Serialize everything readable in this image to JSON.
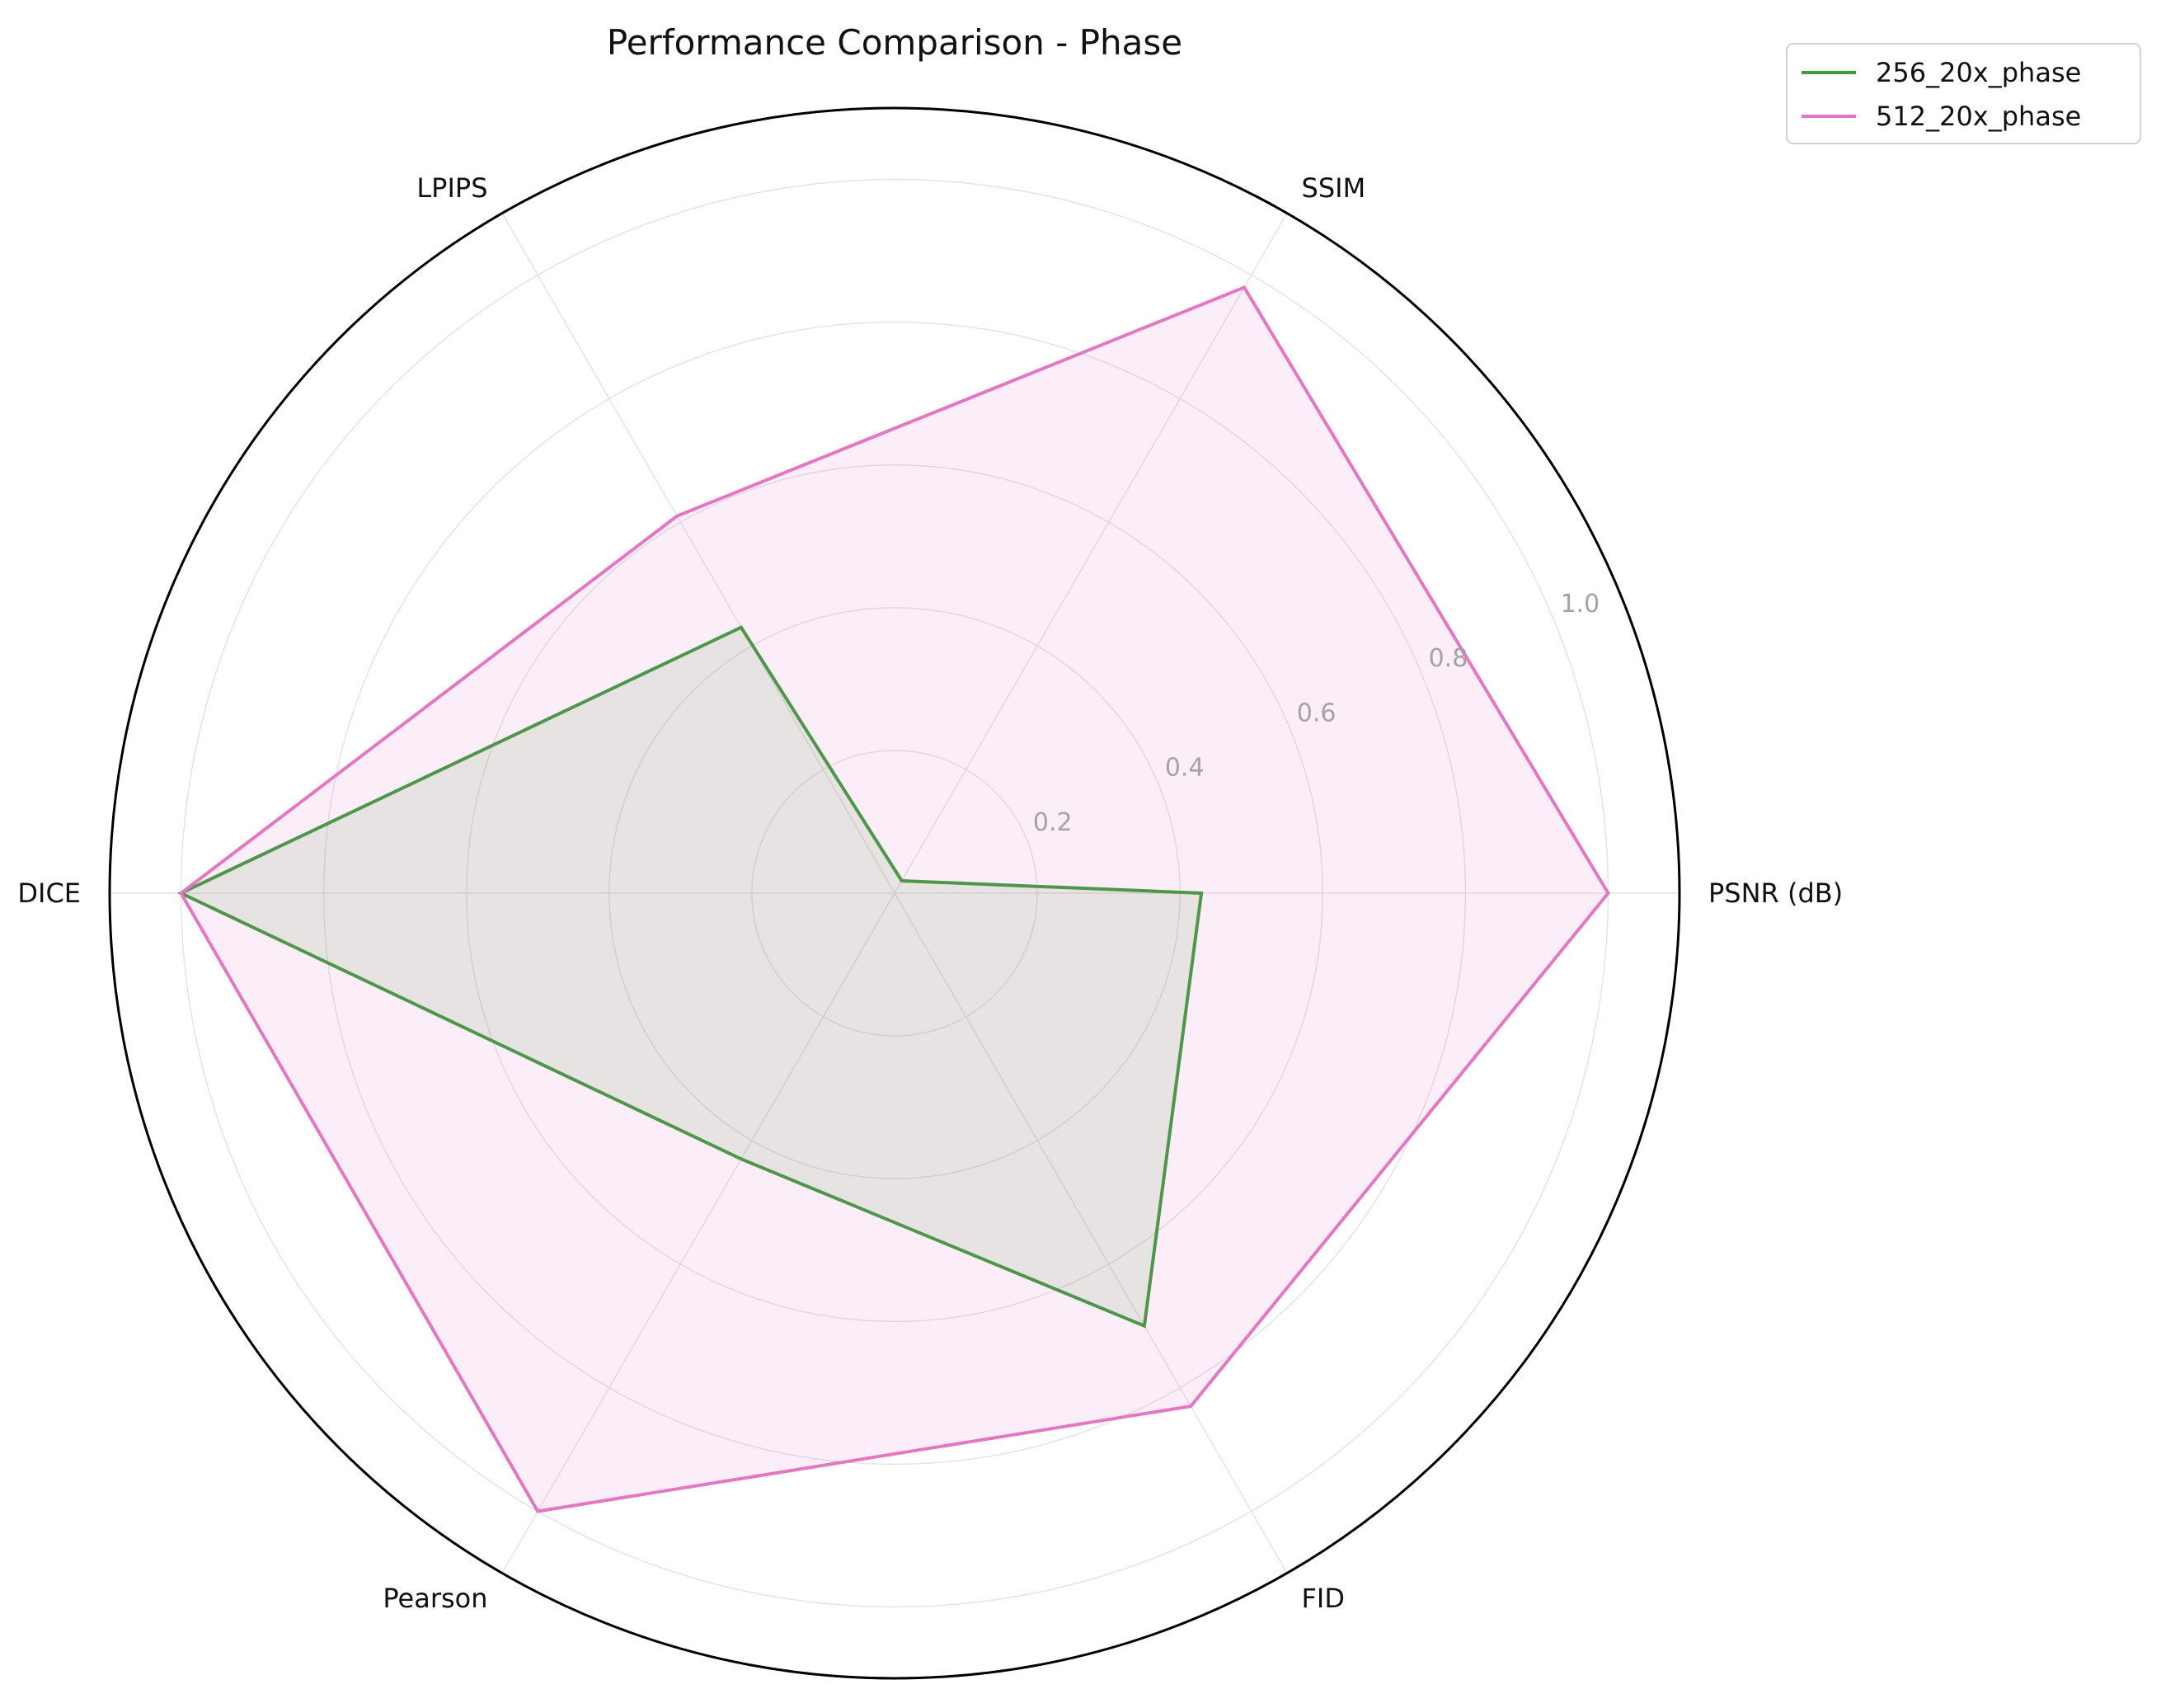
{
  "chart_data": {
    "type": "radar",
    "title": "Performance Comparison - Phase",
    "axes": [
      "PSNR (dB)",
      "SSIM",
      "LPIPS",
      "DICE",
      "Pearson",
      "FID"
    ],
    "radial_ticks": [
      "0.2",
      "0.4",
      "0.6",
      "0.8",
      "1.0"
    ],
    "radial_tick_values": [
      0.2,
      0.4,
      0.6,
      0.8,
      1.0
    ],
    "rlim": [
      0,
      1.1
    ],
    "grid": true,
    "legend_position": "top-right",
    "series": [
      {
        "name": "256_20x_phase",
        "color": "#3a9c3a",
        "fill": "#3a9c3a",
        "values": [
          0.43,
          0.02,
          0.43,
          1.0,
          0.43,
          0.7
        ]
      },
      {
        "name": "512_20x_phase",
        "color": "#e377c2",
        "fill": "#e377c2",
        "values": [
          1.0,
          0.98,
          0.61,
          1.0,
          1.0,
          0.83
        ]
      }
    ]
  }
}
